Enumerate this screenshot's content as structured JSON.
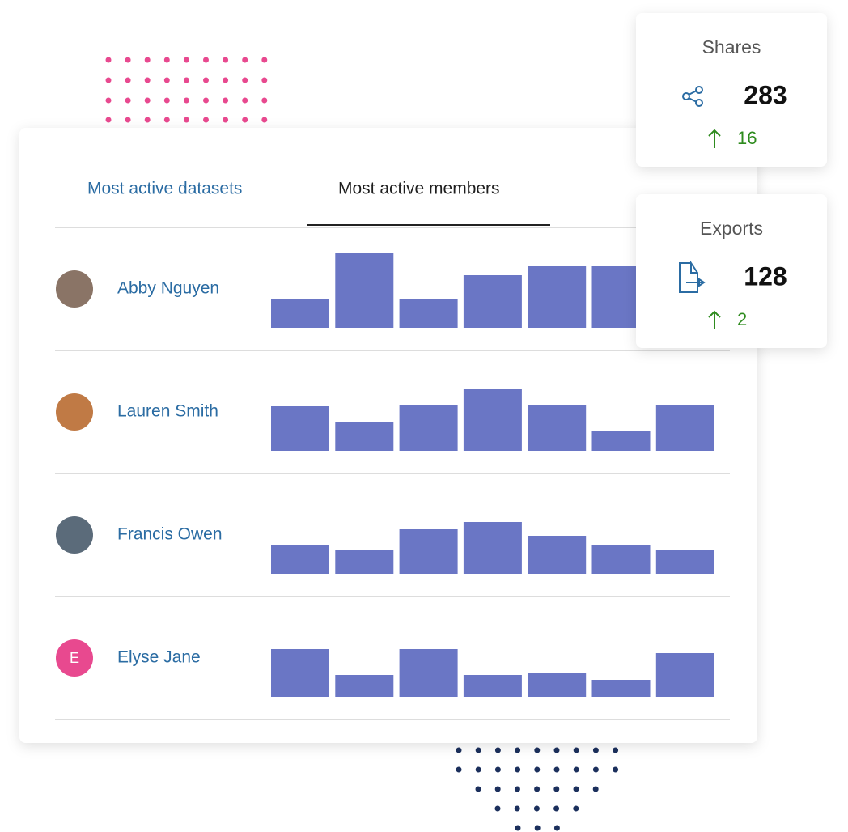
{
  "tabs": [
    "Most active datasets",
    "Most active members"
  ],
  "members": [
    {
      "name": "Abby Nguyen",
      "values": [
        36,
        93,
        36,
        65,
        76,
        76
      ]
    },
    {
      "name": "Lauren Smith",
      "values": [
        55,
        36,
        57,
        76,
        57,
        24,
        57
      ]
    },
    {
      "name": "Francis Owen",
      "values": [
        36,
        30,
        55,
        64,
        47,
        36,
        30
      ]
    },
    {
      "name": "Elyse Jane",
      "initial": "E",
      "values": [
        59,
        27,
        59,
        27,
        30,
        21,
        54
      ]
    }
  ],
  "stats": [
    {
      "title": "Shares",
      "value": "283",
      "change": "16"
    },
    {
      "title": "Exports",
      "value": "128",
      "change": "2"
    }
  ]
}
